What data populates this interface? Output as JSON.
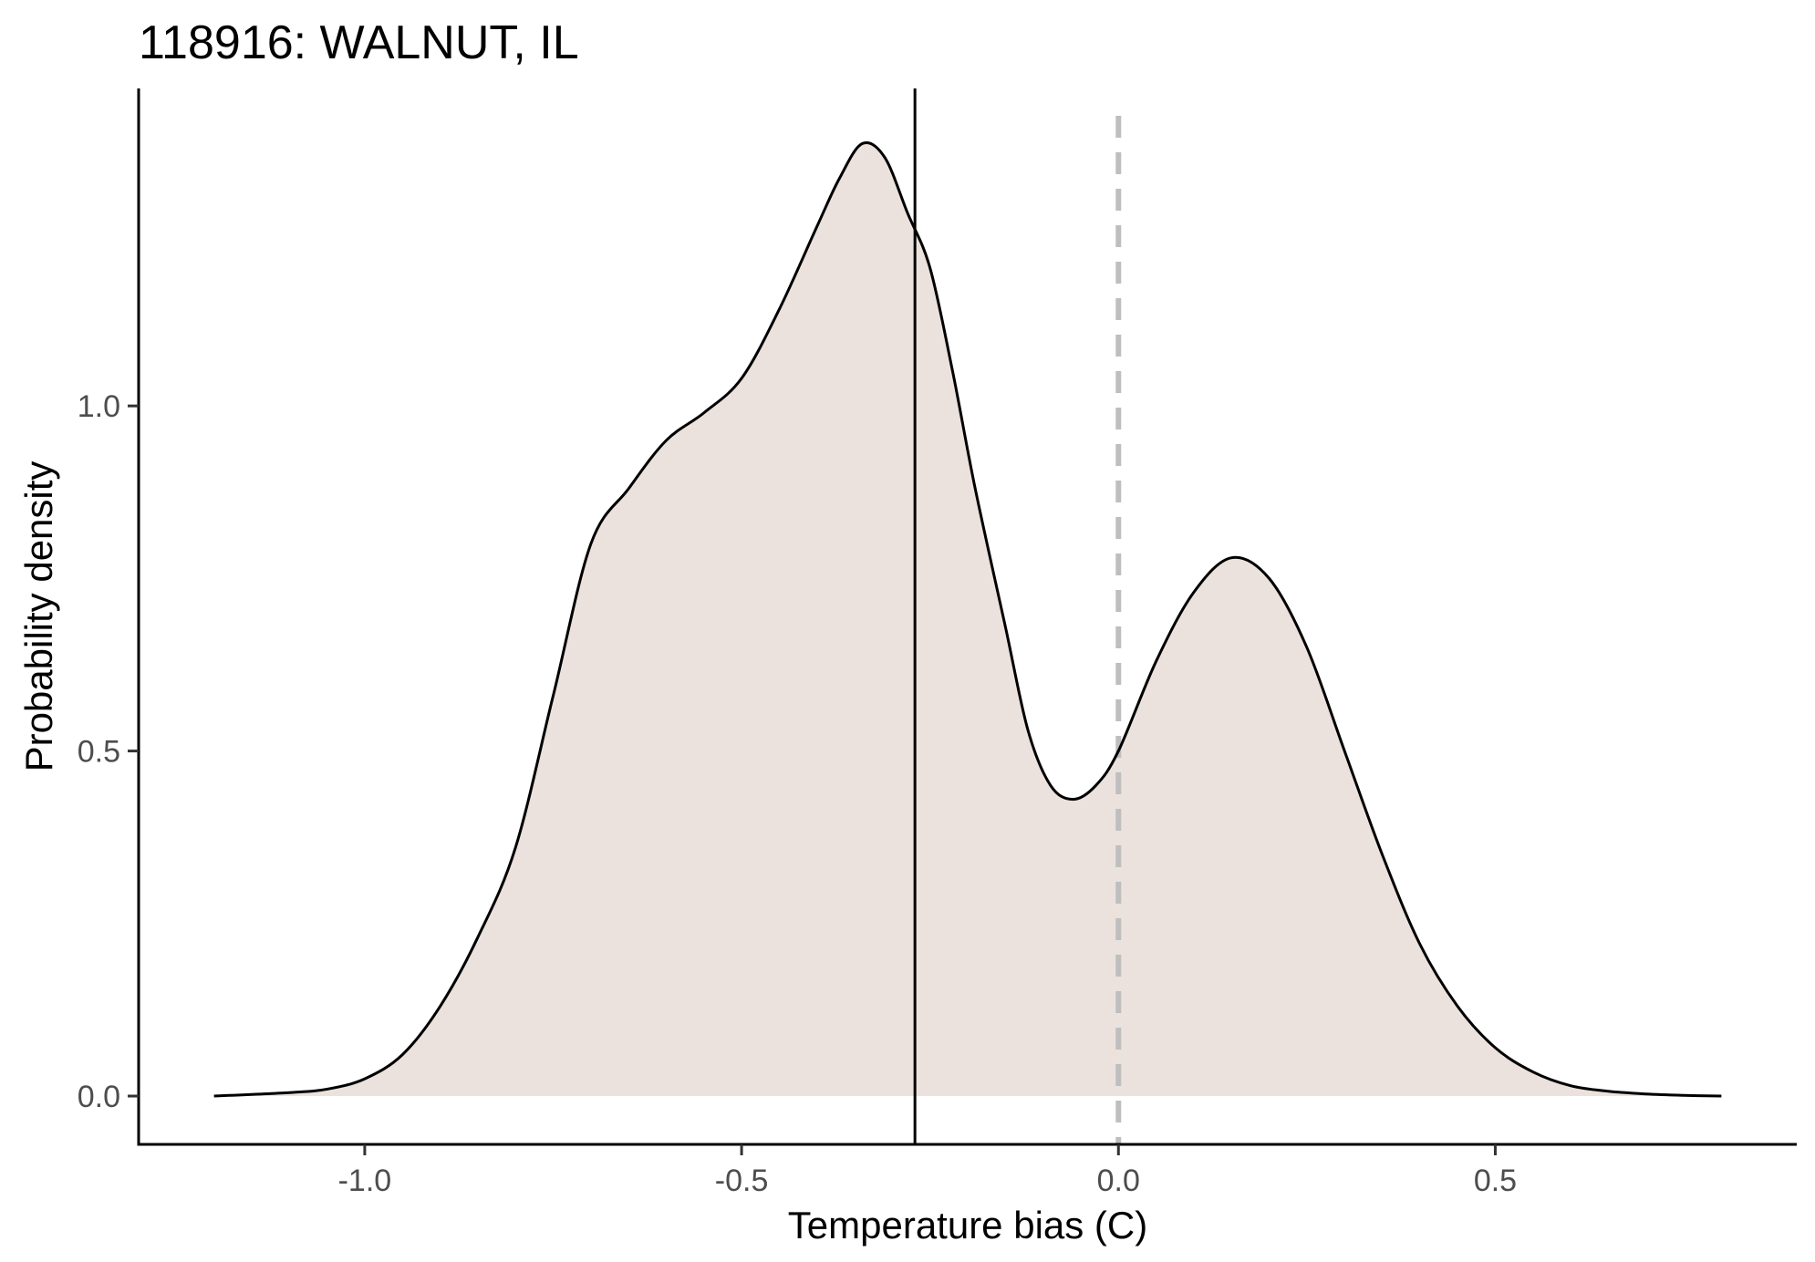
{
  "chart_data": {
    "type": "area",
    "title": "118916: WALNUT, IL",
    "xlabel": "Temperature bias (C)",
    "ylabel": "Probability density",
    "xlim": [
      -1.3,
      0.9
    ],
    "ylim": [
      -0.07,
      1.46
    ],
    "x_ticks": [
      -1.0,
      -0.5,
      0.0,
      0.5
    ],
    "x_tick_labels": [
      "-1.0",
      "-0.5",
      "0.0",
      "0.5"
    ],
    "y_ticks": [
      0.0,
      0.5,
      1.0
    ],
    "y_tick_labels": [
      "0.0",
      "0.5",
      "1.0"
    ],
    "grid": false,
    "series": [
      {
        "x": [
          -1.2,
          -1.1,
          -1.05,
          -1.0,
          -0.95,
          -0.9,
          -0.85,
          -0.8,
          -0.75,
          -0.7,
          -0.65,
          -0.6,
          -0.55,
          -0.5,
          -0.45,
          -0.4,
          -0.37,
          -0.34,
          -0.31,
          -0.28,
          -0.25,
          -0.22,
          -0.19,
          -0.15,
          -0.12,
          -0.09,
          -0.06,
          -0.03,
          0.0,
          0.05,
          0.1,
          0.15,
          0.2,
          0.25,
          0.3,
          0.35,
          0.4,
          0.45,
          0.5,
          0.55,
          0.6,
          0.65,
          0.7,
          0.75,
          0.8
        ],
        "y": [
          0.0,
          0.005,
          0.01,
          0.025,
          0.06,
          0.13,
          0.23,
          0.36,
          0.58,
          0.8,
          0.88,
          0.95,
          0.99,
          1.04,
          1.14,
          1.26,
          1.33,
          1.38,
          1.36,
          1.28,
          1.2,
          1.05,
          0.88,
          0.68,
          0.53,
          0.45,
          0.43,
          0.45,
          0.5,
          0.63,
          0.73,
          0.78,
          0.75,
          0.65,
          0.5,
          0.35,
          0.22,
          0.13,
          0.07,
          0.035,
          0.015,
          0.007,
          0.003,
          0.001,
          0.0
        ],
        "fill": "#ebe1dd",
        "line_color": "#000000"
      }
    ],
    "reference_lines": [
      {
        "x": -0.27,
        "style": "solid",
        "color": "#000000"
      },
      {
        "x": 0.0,
        "style": "dashed",
        "color": "#bebebe"
      }
    ]
  }
}
